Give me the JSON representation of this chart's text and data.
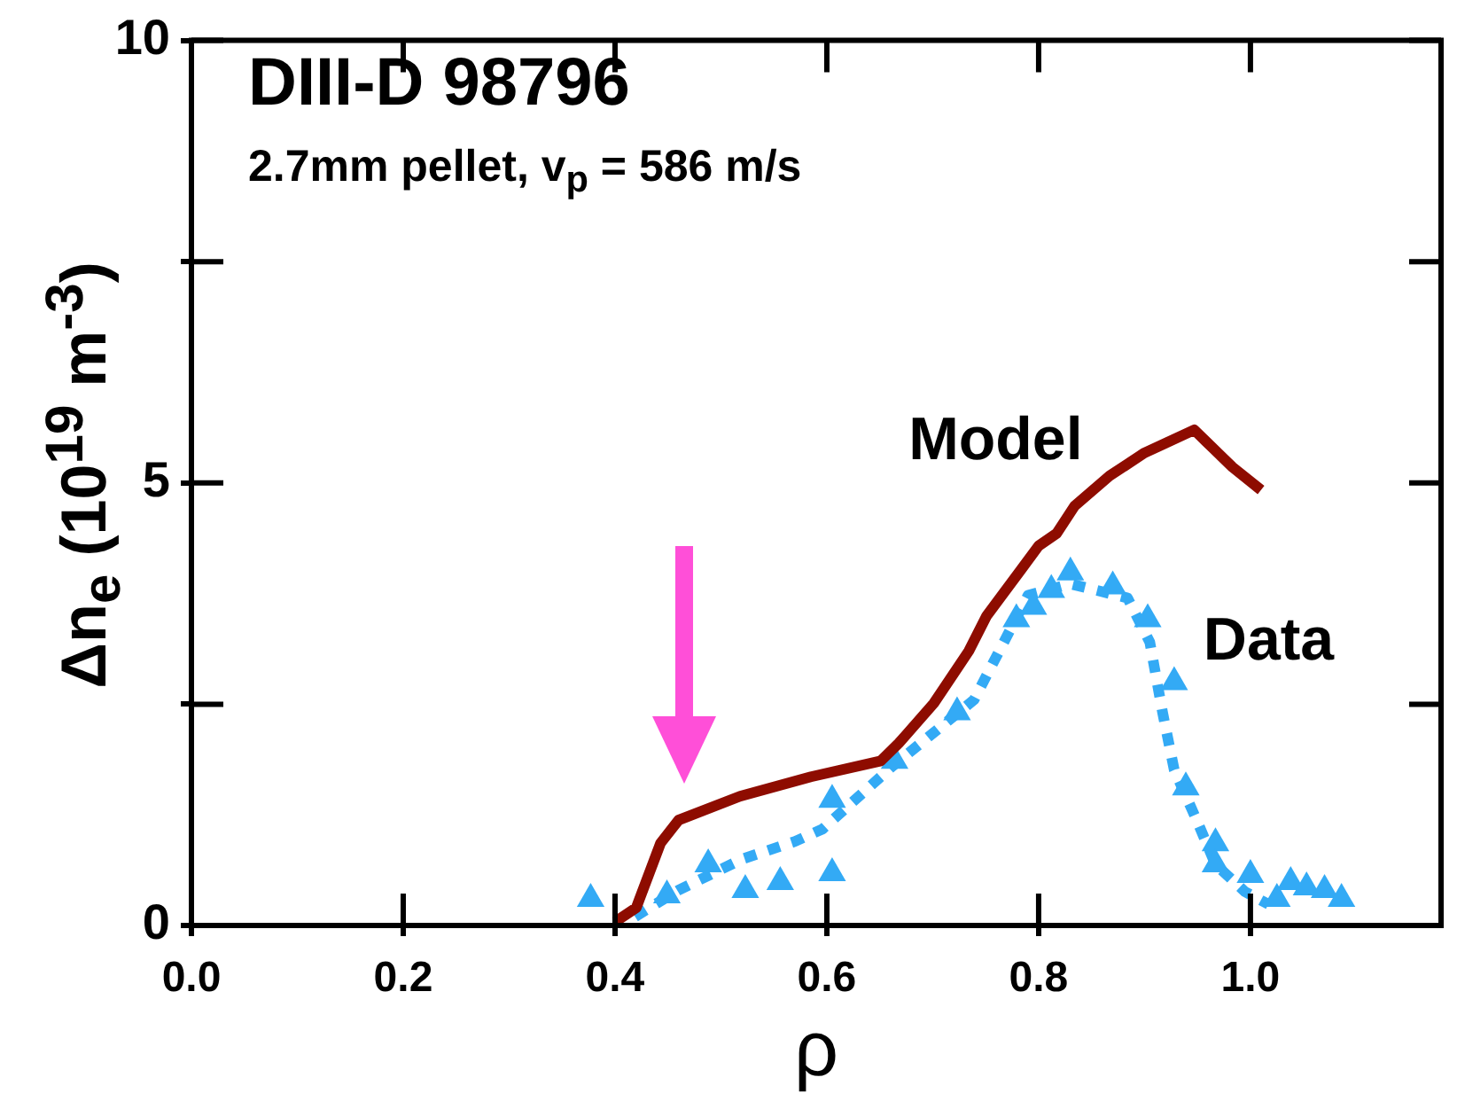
{
  "chart_data": {
    "type": "line",
    "title": "DIII-D 98796",
    "subtitle": "2.7mm pellet, v$_{p}$ = 586 m/s",
    "xlabel": "ρ",
    "ylabel": "Δn$_{e}$ (10$^{19}$ m$^{-3}$)",
    "xlim": [
      0,
      1.18
    ],
    "xticks": [
      {
        "value": 0,
        "label": "0.0"
      },
      {
        "value": 0.2,
        "label": "0.2"
      },
      {
        "value": 0.4,
        "label": "0.4"
      },
      {
        "value": 0.6,
        "label": "0.6"
      },
      {
        "value": 0.8,
        "label": "0.8"
      },
      {
        "value": 1,
        "label": "1.0"
      }
    ],
    "ylim": [
      0,
      10
    ],
    "yticks": [
      0,
      {
        "value": 2.5,
        "label": null
      },
      5,
      {
        "value": 7.5,
        "label": null
      },
      10
    ],
    "grid": false,
    "legend": false,
    "series": [
      {
        "name": "Model",
        "color": "#8e0c00",
        "marker": "none",
        "line_style": "solid",
        "x": [
          0.4,
          0.42,
          0.443,
          0.46,
          0.518,
          0.585,
          0.651,
          0.668,
          0.701,
          0.734,
          0.751,
          0.784,
          0.8,
          0.817,
          0.834,
          0.867,
          0.9,
          0.947,
          0.958,
          0.983,
          1.01
        ],
        "values": [
          0.04,
          0.2,
          0.93,
          1.19,
          1.46,
          1.68,
          1.86,
          2.06,
          2.51,
          3.1,
          3.5,
          4.03,
          4.29,
          4.43,
          4.74,
          5.08,
          5.34,
          5.6,
          5.47,
          5.18,
          4.92
        ]
      },
      {
        "name": "Data",
        "type": "scatter",
        "color": "#33aaf5",
        "marker": "triangle",
        "x": [
          0.377,
          0.449,
          0.488,
          0.523,
          0.556,
          0.605,
          0.605,
          0.664,
          0.723,
          0.779,
          0.795,
          0.812,
          0.83,
          0.87,
          0.903,
          0.928,
          0.939,
          0.967,
          0.967,
          1.0,
          1.025,
          1.038,
          1.053,
          1.07,
          1.086
        ],
        "values": [
          0.3,
          0.34,
          0.69,
          0.4,
          0.49,
          0.59,
          1.42,
          1.86,
          2.41,
          3.46,
          3.6,
          3.79,
          3.99,
          3.83,
          3.46,
          2.75,
          1.56,
          0.93,
          0.69,
          0.57,
          0.3,
          0.49,
          0.43,
          0.4,
          0.3
        ]
      },
      {
        "color": "#33aaf5",
        "marker": "none",
        "line_style": "dotted",
        "x": [
          0.419,
          0.46,
          0.52,
          0.57,
          0.596,
          0.662,
          0.739,
          0.79,
          0.83,
          0.884,
          0.905,
          0.917,
          0.928,
          0.95,
          0.967,
          0.995,
          1.017
        ],
        "values": [
          0.1,
          0.4,
          0.75,
          0.95,
          1.09,
          1.8,
          2.55,
          3.73,
          3.86,
          3.7,
          3.2,
          2.41,
          1.76,
          1.17,
          0.69,
          0.38,
          0.24
        ]
      }
    ]
  }
}
